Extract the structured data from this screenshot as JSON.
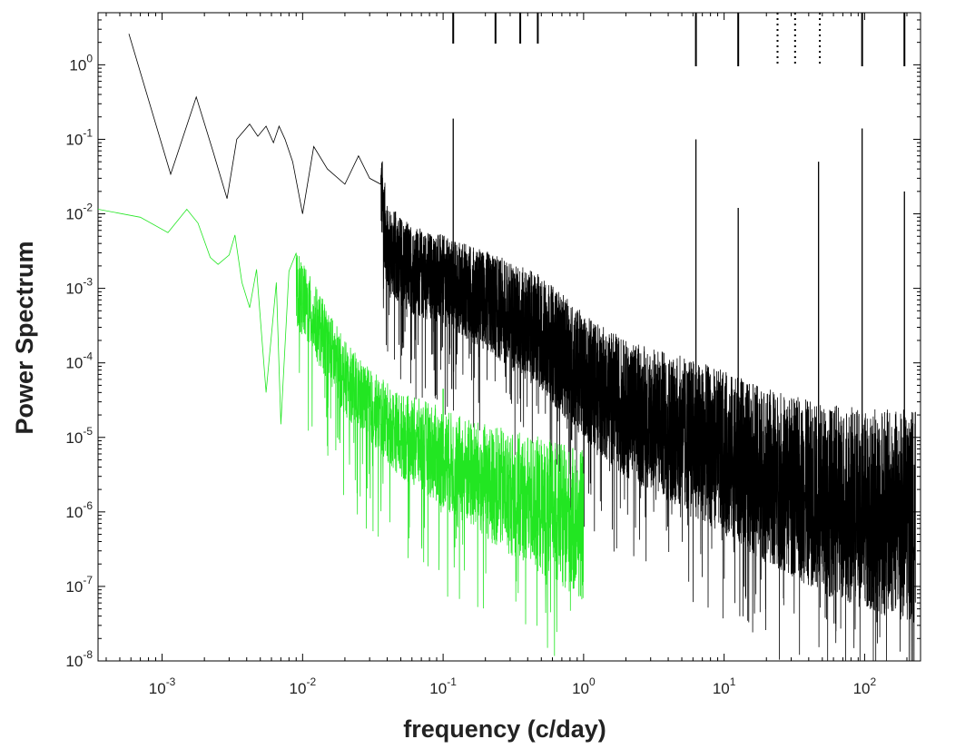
{
  "chart_data": {
    "type": "line",
    "title": "",
    "xlabel": "frequency (c/day)",
    "ylabel": "Power Spectrum",
    "xscale": "log",
    "yscale": "log",
    "xlim": [
      0.00035,
      250
    ],
    "ylim": [
      1e-08,
      5
    ],
    "grid": false,
    "legend": "none",
    "x_tick_labels": [
      {
        "base": "10",
        "exp": "-3"
      },
      {
        "base": "10",
        "exp": "-2"
      },
      {
        "base": "10",
        "exp": "-1"
      },
      {
        "base": "10",
        "exp": "0"
      },
      {
        "base": "10",
        "exp": "1"
      },
      {
        "base": "10",
        "exp": "2"
      }
    ],
    "y_tick_labels": [
      {
        "base": "10",
        "exp": "-8"
      },
      {
        "base": "10",
        "exp": "-7"
      },
      {
        "base": "10",
        "exp": "-6"
      },
      {
        "base": "10",
        "exp": "-5"
      },
      {
        "base": "10",
        "exp": "-4"
      },
      {
        "base": "10",
        "exp": "-3"
      },
      {
        "base": "10",
        "exp": "-2"
      },
      {
        "base": "10",
        "exp": "-1"
      },
      {
        "base": "10",
        "exp": "0"
      }
    ],
    "series": [
      {
        "color": "#000000",
        "anchor_points": [
          [
            0.00058,
            2.6
          ],
          [
            0.00115,
            0.034
          ],
          [
            0.00175,
            0.37
          ],
          [
            0.0023,
            0.07
          ],
          [
            0.0029,
            0.016
          ],
          [
            0.0034,
            0.1
          ],
          [
            0.0042,
            0.16
          ],
          [
            0.0048,
            0.11
          ],
          [
            0.0055,
            0.15
          ],
          [
            0.0062,
            0.09
          ],
          [
            0.0068,
            0.15
          ],
          [
            0.0075,
            0.1
          ],
          [
            0.0085,
            0.05
          ],
          [
            0.01,
            0.01
          ],
          [
            0.012,
            0.08
          ],
          [
            0.015,
            0.04
          ],
          [
            0.02,
            0.025
          ],
          [
            0.025,
            0.06
          ],
          [
            0.03,
            0.03
          ],
          [
            0.036,
            0.025
          ],
          [
            0.04,
            0.004
          ],
          [
            0.06,
            0.002
          ],
          [
            0.1,
            0.0015
          ],
          [
            0.2,
            0.0008
          ],
          [
            0.5,
            0.0003
          ],
          [
            1,
            8e-05
          ],
          [
            2,
            3e-05
          ],
          [
            5,
            1.5e-05
          ],
          [
            10,
            8e-06
          ],
          [
            20,
            4e-06
          ],
          [
            50,
            2e-06
          ],
          [
            100,
            1.5e-06
          ],
          [
            230,
            1.2e-06
          ]
        ],
        "peaks": [
          {
            "x": 0.118,
            "y": 0.19
          },
          {
            "x": 6.3,
            "y": 0.1
          },
          {
            "x": 12.6,
            "y": 0.012
          },
          {
            "x": 47,
            "y": 0.05
          },
          {
            "x": 96,
            "y": 0.14
          },
          {
            "x": 192,
            "y": 0.02
          }
        ]
      },
      {
        "color": "#22e622",
        "anchor_points": [
          [
            0.00035,
            0.0115
          ],
          [
            0.0007,
            0.009
          ],
          [
            0.0011,
            0.0056
          ],
          [
            0.0015,
            0.0115
          ],
          [
            0.0018,
            0.0075
          ],
          [
            0.0022,
            0.0026
          ],
          [
            0.0025,
            0.0021
          ],
          [
            0.003,
            0.0028
          ],
          [
            0.0033,
            0.0052
          ],
          [
            0.0037,
            0.0012
          ],
          [
            0.0042,
            0.00055
          ],
          [
            0.0047,
            0.0018
          ],
          [
            0.0055,
            4e-05
          ],
          [
            0.0065,
            0.0012
          ],
          [
            0.007,
            1.5e-05
          ],
          [
            0.008,
            0.0017
          ],
          [
            0.01,
            0.0008
          ],
          [
            0.015,
            0.0002
          ],
          [
            0.02,
            7e-05
          ],
          [
            0.03,
            3e-05
          ],
          [
            0.05,
            1.2e-05
          ],
          [
            0.08,
            8e-06
          ],
          [
            0.1,
            6e-06
          ],
          [
            0.2,
            3e-06
          ],
          [
            0.5,
            1.5e-06
          ],
          [
            1,
            8e-07
          ]
        ],
        "peaks": [
          {
            "x": 0.1,
            "y": 4.5e-05
          }
        ]
      }
    ],
    "marker_lines": [
      {
        "x": 0.118,
        "style": "solid",
        "length": "short"
      },
      {
        "x": 0.236,
        "style": "solid",
        "length": "short"
      },
      {
        "x": 0.354,
        "style": "solid",
        "length": "short"
      },
      {
        "x": 0.472,
        "style": "solid",
        "length": "short"
      },
      {
        "x": 6.3,
        "style": "solid",
        "length": "long"
      },
      {
        "x": 12.6,
        "style": "solid",
        "length": "long"
      },
      {
        "x": 24,
        "style": "dotted",
        "length": "long"
      },
      {
        "x": 32,
        "style": "dotted",
        "length": "long"
      },
      {
        "x": 48,
        "style": "dotted",
        "length": "long"
      },
      {
        "x": 96,
        "style": "solid",
        "length": "long"
      },
      {
        "x": 192,
        "style": "solid",
        "length": "long"
      }
    ]
  }
}
